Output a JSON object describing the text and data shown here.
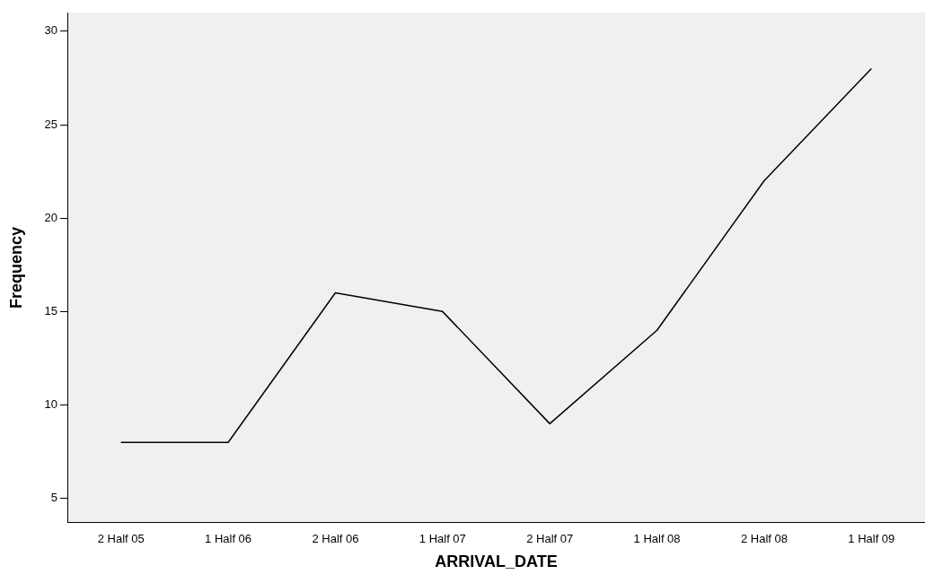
{
  "chart_data": {
    "type": "line",
    "xlabel": "ARRIVAL_DATE",
    "ylabel": "Frequency",
    "categories": [
      "2 Half 05",
      "1 Half 06",
      "2 Half 06",
      "1 Half 07",
      "2 Half 07",
      "1 Half 08",
      "2 Half 08",
      "1 Half 09"
    ],
    "series": [
      {
        "color": "#000000",
        "values": [
          8,
          8,
          16,
          15,
          9,
          14,
          22,
          28
        ]
      }
    ],
    "ylim": [
      3.7,
      31
    ],
    "yticks": [
      5,
      10,
      15,
      20,
      25,
      30
    ],
    "grid": false,
    "legend": false,
    "marker": "none",
    "line_style": "solid"
  }
}
